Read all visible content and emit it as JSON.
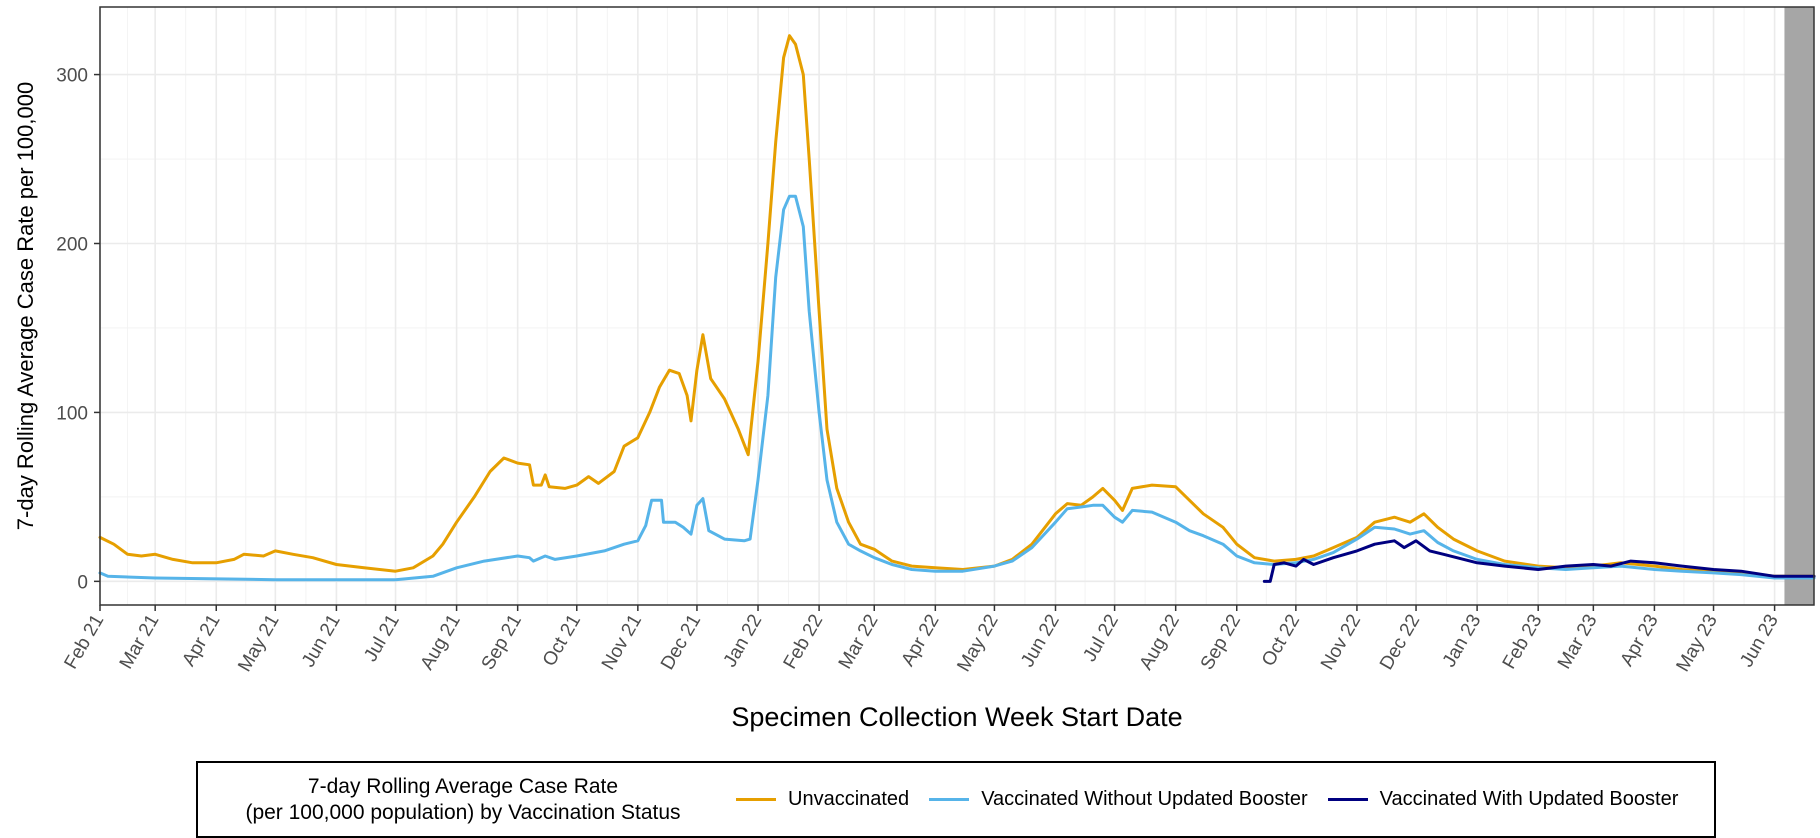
{
  "chart_data": {
    "type": "line",
    "xlabel": "Specimen Collection Week Start Date",
    "ylabel": "7-day Rolling Average Case Rate per 100,000",
    "ylim": [
      -14,
      340
    ],
    "xlim": [
      "2021-02-01",
      "2023-06-21"
    ],
    "y_ticks": [
      0,
      100,
      200,
      300
    ],
    "x_ticks": [
      {
        "date": "2021-02-01",
        "label": "Feb 21"
      },
      {
        "date": "2021-03-01",
        "label": "Mar 21"
      },
      {
        "date": "2021-04-01",
        "label": "Apr 21"
      },
      {
        "date": "2021-05-01",
        "label": "May 21"
      },
      {
        "date": "2021-06-01",
        "label": "Jun 21"
      },
      {
        "date": "2021-07-01",
        "label": "Jul 21"
      },
      {
        "date": "2021-08-01",
        "label": "Aug 21"
      },
      {
        "date": "2021-09-01",
        "label": "Sep 21"
      },
      {
        "date": "2021-10-01",
        "label": "Oct 21"
      },
      {
        "date": "2021-11-01",
        "label": "Nov 21"
      },
      {
        "date": "2021-12-01",
        "label": "Dec 21"
      },
      {
        "date": "2022-01-01",
        "label": "Jan 22"
      },
      {
        "date": "2022-02-01",
        "label": "Feb 22"
      },
      {
        "date": "2022-03-01",
        "label": "Mar 22"
      },
      {
        "date": "2022-04-01",
        "label": "Apr 22"
      },
      {
        "date": "2022-05-01",
        "label": "May 22"
      },
      {
        "date": "2022-06-01",
        "label": "Jun 22"
      },
      {
        "date": "2022-07-01",
        "label": "Jul 22"
      },
      {
        "date": "2022-08-01",
        "label": "Aug 22"
      },
      {
        "date": "2022-09-01",
        "label": "Sep 22"
      },
      {
        "date": "2022-10-01",
        "label": "Oct 22"
      },
      {
        "date": "2022-11-01",
        "label": "Nov 22"
      },
      {
        "date": "2022-12-01",
        "label": "Dec 22"
      },
      {
        "date": "2023-01-01",
        "label": "Jan 23"
      },
      {
        "date": "2023-02-01",
        "label": "Feb 23"
      },
      {
        "date": "2023-03-01",
        "label": "Mar 23"
      },
      {
        "date": "2023-04-01",
        "label": "Apr 23"
      },
      {
        "date": "2023-05-01",
        "label": "May 23"
      },
      {
        "date": "2023-06-01",
        "label": "Jun 23"
      }
    ],
    "shaded_period": {
      "start": "2023-06-06",
      "end": "2023-06-21",
      "color": "#a6a6a6"
    },
    "grid": true,
    "legend_position": "bottom",
    "legend_title": [
      "7-day Rolling Average Case Rate",
      "(per 100,000 population) by Vaccination Status"
    ],
    "series": [
      {
        "name": "Unvaccinated",
        "color": "#E69F00",
        "points": [
          [
            "2021-02-01",
            26
          ],
          [
            "2021-02-08",
            22
          ],
          [
            "2021-02-15",
            16
          ],
          [
            "2021-02-22",
            15
          ],
          [
            "2021-03-01",
            16
          ],
          [
            "2021-03-10",
            13
          ],
          [
            "2021-03-20",
            11
          ],
          [
            "2021-04-01",
            11
          ],
          [
            "2021-04-10",
            13
          ],
          [
            "2021-04-15",
            16
          ],
          [
            "2021-04-25",
            15
          ],
          [
            "2021-05-01",
            18
          ],
          [
            "2021-05-10",
            16
          ],
          [
            "2021-05-20",
            14
          ],
          [
            "2021-06-01",
            10
          ],
          [
            "2021-06-15",
            8
          ],
          [
            "2021-07-01",
            6
          ],
          [
            "2021-07-10",
            8
          ],
          [
            "2021-07-20",
            15
          ],
          [
            "2021-07-25",
            22
          ],
          [
            "2021-08-01",
            35
          ],
          [
            "2021-08-10",
            50
          ],
          [
            "2021-08-18",
            65
          ],
          [
            "2021-08-25",
            73
          ],
          [
            "2021-09-01",
            70
          ],
          [
            "2021-09-07",
            69
          ],
          [
            "2021-09-09",
            57
          ],
          [
            "2021-09-13",
            57
          ],
          [
            "2021-09-15",
            63
          ],
          [
            "2021-09-17",
            56
          ],
          [
            "2021-09-25",
            55
          ],
          [
            "2021-10-01",
            57
          ],
          [
            "2021-10-07",
            62
          ],
          [
            "2021-10-12",
            58
          ],
          [
            "2021-10-20",
            65
          ],
          [
            "2021-10-25",
            80
          ],
          [
            "2021-11-01",
            85
          ],
          [
            "2021-11-07",
            100
          ],
          [
            "2021-11-12",
            115
          ],
          [
            "2021-11-17",
            125
          ],
          [
            "2021-11-22",
            123
          ],
          [
            "2021-11-26",
            110
          ],
          [
            "2021-11-28",
            95
          ],
          [
            "2021-12-01",
            125
          ],
          [
            "2021-12-04",
            146
          ],
          [
            "2021-12-08",
            120
          ],
          [
            "2021-12-15",
            108
          ],
          [
            "2021-12-22",
            90
          ],
          [
            "2021-12-27",
            75
          ],
          [
            "2022-01-01",
            130
          ],
          [
            "2022-01-06",
            200
          ],
          [
            "2022-01-10",
            260
          ],
          [
            "2022-01-14",
            310
          ],
          [
            "2022-01-17",
            323
          ],
          [
            "2022-01-20",
            318
          ],
          [
            "2022-01-24",
            300
          ],
          [
            "2022-01-27",
            250
          ],
          [
            "2022-02-01",
            160
          ],
          [
            "2022-02-05",
            90
          ],
          [
            "2022-02-10",
            55
          ],
          [
            "2022-02-16",
            35
          ],
          [
            "2022-02-22",
            22
          ],
          [
            "2022-03-01",
            19
          ],
          [
            "2022-03-10",
            12
          ],
          [
            "2022-03-20",
            9
          ],
          [
            "2022-04-01",
            8
          ],
          [
            "2022-04-15",
            7
          ],
          [
            "2022-05-01",
            9
          ],
          [
            "2022-05-10",
            13
          ],
          [
            "2022-05-20",
            22
          ],
          [
            "2022-06-01",
            40
          ],
          [
            "2022-06-07",
            46
          ],
          [
            "2022-06-14",
            45
          ],
          [
            "2022-06-20",
            50
          ],
          [
            "2022-06-25",
            55
          ],
          [
            "2022-07-01",
            48
          ],
          [
            "2022-07-05",
            42
          ],
          [
            "2022-07-10",
            55
          ],
          [
            "2022-07-20",
            57
          ],
          [
            "2022-08-01",
            56
          ],
          [
            "2022-08-08",
            48
          ],
          [
            "2022-08-15",
            40
          ],
          [
            "2022-08-25",
            32
          ],
          [
            "2022-09-01",
            22
          ],
          [
            "2022-09-10",
            14
          ],
          [
            "2022-09-20",
            12
          ],
          [
            "2022-10-01",
            13
          ],
          [
            "2022-10-10",
            15
          ],
          [
            "2022-10-20",
            20
          ],
          [
            "2022-11-01",
            26
          ],
          [
            "2022-11-10",
            35
          ],
          [
            "2022-11-20",
            38
          ],
          [
            "2022-11-28",
            35
          ],
          [
            "2022-12-05",
            40
          ],
          [
            "2022-12-12",
            32
          ],
          [
            "2022-12-20",
            25
          ],
          [
            "2023-01-01",
            18
          ],
          [
            "2023-01-15",
            12
          ],
          [
            "2023-02-01",
            9
          ],
          [
            "2023-02-15",
            8
          ],
          [
            "2023-03-01",
            9
          ],
          [
            "2023-03-15",
            11
          ],
          [
            "2023-04-01",
            9
          ],
          [
            "2023-04-15",
            7
          ],
          [
            "2023-05-01",
            6
          ],
          [
            "2023-05-15",
            5
          ],
          [
            "2023-06-01",
            3
          ],
          [
            "2023-06-21",
            3
          ]
        ]
      },
      {
        "name": "Vaccinated Without Updated Booster",
        "color": "#56B4E9",
        "points": [
          [
            "2021-02-01",
            5
          ],
          [
            "2021-02-05",
            3
          ],
          [
            "2021-03-01",
            2
          ],
          [
            "2021-05-01",
            1
          ],
          [
            "2021-07-01",
            1
          ],
          [
            "2021-07-20",
            3
          ],
          [
            "2021-08-01",
            8
          ],
          [
            "2021-08-15",
            12
          ],
          [
            "2021-09-01",
            15
          ],
          [
            "2021-09-07",
            14
          ],
          [
            "2021-09-09",
            12
          ],
          [
            "2021-09-15",
            15
          ],
          [
            "2021-09-20",
            13
          ],
          [
            "2021-10-01",
            15
          ],
          [
            "2021-10-15",
            18
          ],
          [
            "2021-10-25",
            22
          ],
          [
            "2021-11-01",
            24
          ],
          [
            "2021-11-05",
            33
          ],
          [
            "2021-11-08",
            48
          ],
          [
            "2021-11-13",
            48
          ],
          [
            "2021-11-14",
            35
          ],
          [
            "2021-11-20",
            35
          ],
          [
            "2021-11-24",
            32
          ],
          [
            "2021-11-28",
            28
          ],
          [
            "2021-12-01",
            45
          ],
          [
            "2021-12-04",
            49
          ],
          [
            "2021-12-07",
            30
          ],
          [
            "2021-12-15",
            25
          ],
          [
            "2021-12-25",
            24
          ],
          [
            "2021-12-28",
            25
          ],
          [
            "2022-01-01",
            60
          ],
          [
            "2022-01-06",
            110
          ],
          [
            "2022-01-10",
            180
          ],
          [
            "2022-01-14",
            220
          ],
          [
            "2022-01-17",
            228
          ],
          [
            "2022-01-20",
            228
          ],
          [
            "2022-01-24",
            210
          ],
          [
            "2022-01-27",
            160
          ],
          [
            "2022-02-01",
            100
          ],
          [
            "2022-02-05",
            60
          ],
          [
            "2022-02-10",
            35
          ],
          [
            "2022-02-16",
            22
          ],
          [
            "2022-02-22",
            18
          ],
          [
            "2022-03-01",
            14
          ],
          [
            "2022-03-10",
            10
          ],
          [
            "2022-03-20",
            7
          ],
          [
            "2022-04-01",
            6
          ],
          [
            "2022-04-15",
            6
          ],
          [
            "2022-05-01",
            9
          ],
          [
            "2022-05-10",
            12
          ],
          [
            "2022-05-20",
            20
          ],
          [
            "2022-06-01",
            35
          ],
          [
            "2022-06-07",
            43
          ],
          [
            "2022-06-14",
            44
          ],
          [
            "2022-06-20",
            45
          ],
          [
            "2022-06-25",
            45
          ],
          [
            "2022-07-01",
            38
          ],
          [
            "2022-07-05",
            35
          ],
          [
            "2022-07-10",
            42
          ],
          [
            "2022-07-20",
            41
          ],
          [
            "2022-08-01",
            35
          ],
          [
            "2022-08-08",
            30
          ],
          [
            "2022-08-15",
            27
          ],
          [
            "2022-08-25",
            22
          ],
          [
            "2022-09-01",
            15
          ],
          [
            "2022-09-10",
            11
          ],
          [
            "2022-09-20",
            10
          ],
          [
            "2022-10-01",
            11
          ],
          [
            "2022-10-10",
            13
          ],
          [
            "2022-10-20",
            17
          ],
          [
            "2022-11-01",
            25
          ],
          [
            "2022-11-10",
            32
          ],
          [
            "2022-11-20",
            31
          ],
          [
            "2022-11-28",
            28
          ],
          [
            "2022-12-05",
            30
          ],
          [
            "2022-12-12",
            23
          ],
          [
            "2022-12-20",
            18
          ],
          [
            "2023-01-01",
            13
          ],
          [
            "2023-01-15",
            10
          ],
          [
            "2023-02-01",
            8
          ],
          [
            "2023-02-15",
            7
          ],
          [
            "2023-03-01",
            8
          ],
          [
            "2023-03-15",
            9
          ],
          [
            "2023-04-01",
            7
          ],
          [
            "2023-04-15",
            6
          ],
          [
            "2023-05-01",
            5
          ],
          [
            "2023-05-15",
            4
          ],
          [
            "2023-06-01",
            2
          ],
          [
            "2023-06-21",
            2
          ]
        ]
      },
      {
        "name": "Vaccinated With Updated Booster",
        "color": "#000080",
        "points": [
          [
            "2022-09-15",
            0
          ],
          [
            "2022-09-18",
            0
          ],
          [
            "2022-09-20",
            10
          ],
          [
            "2022-09-25",
            11
          ],
          [
            "2022-10-01",
            9
          ],
          [
            "2022-10-05",
            13
          ],
          [
            "2022-10-10",
            10
          ],
          [
            "2022-10-20",
            14
          ],
          [
            "2022-11-01",
            18
          ],
          [
            "2022-11-10",
            22
          ],
          [
            "2022-11-20",
            24
          ],
          [
            "2022-11-25",
            20
          ],
          [
            "2022-12-01",
            24
          ],
          [
            "2022-12-08",
            18
          ],
          [
            "2022-12-15",
            16
          ],
          [
            "2023-01-01",
            11
          ],
          [
            "2023-01-15",
            9
          ],
          [
            "2023-02-01",
            7
          ],
          [
            "2023-02-15",
            9
          ],
          [
            "2023-03-01",
            10
          ],
          [
            "2023-03-10",
            9
          ],
          [
            "2023-03-20",
            12
          ],
          [
            "2023-04-01",
            11
          ],
          [
            "2023-04-15",
            9
          ],
          [
            "2023-05-01",
            7
          ],
          [
            "2023-05-15",
            6
          ],
          [
            "2023-06-01",
            3
          ],
          [
            "2023-06-21",
            3
          ]
        ]
      }
    ]
  }
}
